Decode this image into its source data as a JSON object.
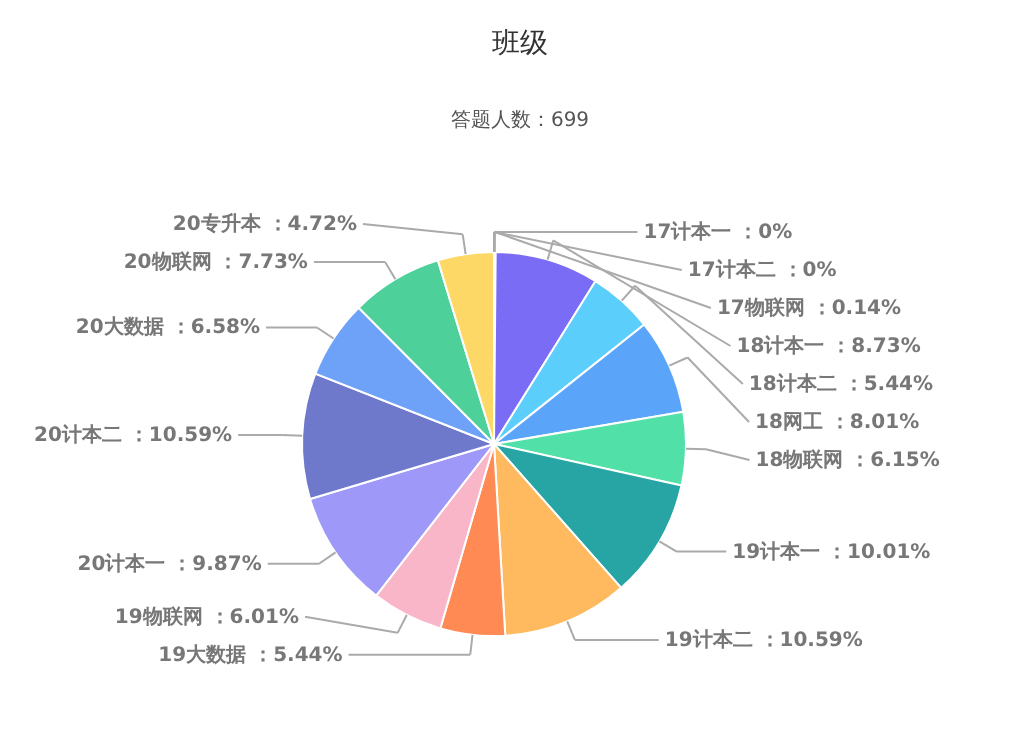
{
  "chart_data": {
    "type": "pie",
    "title": "班级",
    "subtitle": "答题人数：699",
    "categories": [
      "17计本一",
      "17计本二",
      "17物联网",
      "18计本一",
      "18计本二",
      "18网工",
      "18物联网",
      "19计本一",
      "19计本二",
      "19大数据",
      "19物联网",
      "20计本一",
      "20计本二",
      "20大数据",
      "20物联网",
      "20专升本"
    ],
    "values": [
      0,
      0,
      0.14,
      8.73,
      5.44,
      8.01,
      6.15,
      10.01,
      10.59,
      5.44,
      6.01,
      9.87,
      10.59,
      6.58,
      7.73,
      4.72
    ],
    "value_labels": [
      "：0%",
      "：0%",
      "：0.14%",
      "：8.73%",
      "：5.44%",
      "：8.01%",
      "：6.15%",
      "：10.01%",
      "：10.59%",
      "：5.44%",
      "：6.01%",
      "：9.87%",
      "：10.59%",
      "：6.58%",
      "：7.73%",
      "：4.72%"
    ],
    "colors": [
      "#5b8ff9",
      "#5ad8a6",
      "#5d7092",
      "#7b6cf6",
      "#5ccefb",
      "#5aa4fa",
      "#52e0a9",
      "#27a4a4",
      "#ffb95f",
      "#ff8a54",
      "#f9b6c9",
      "#9e98f8",
      "#6e79cc",
      "#6ea2f8",
      "#4dd09a",
      "#fdd866"
    ]
  }
}
